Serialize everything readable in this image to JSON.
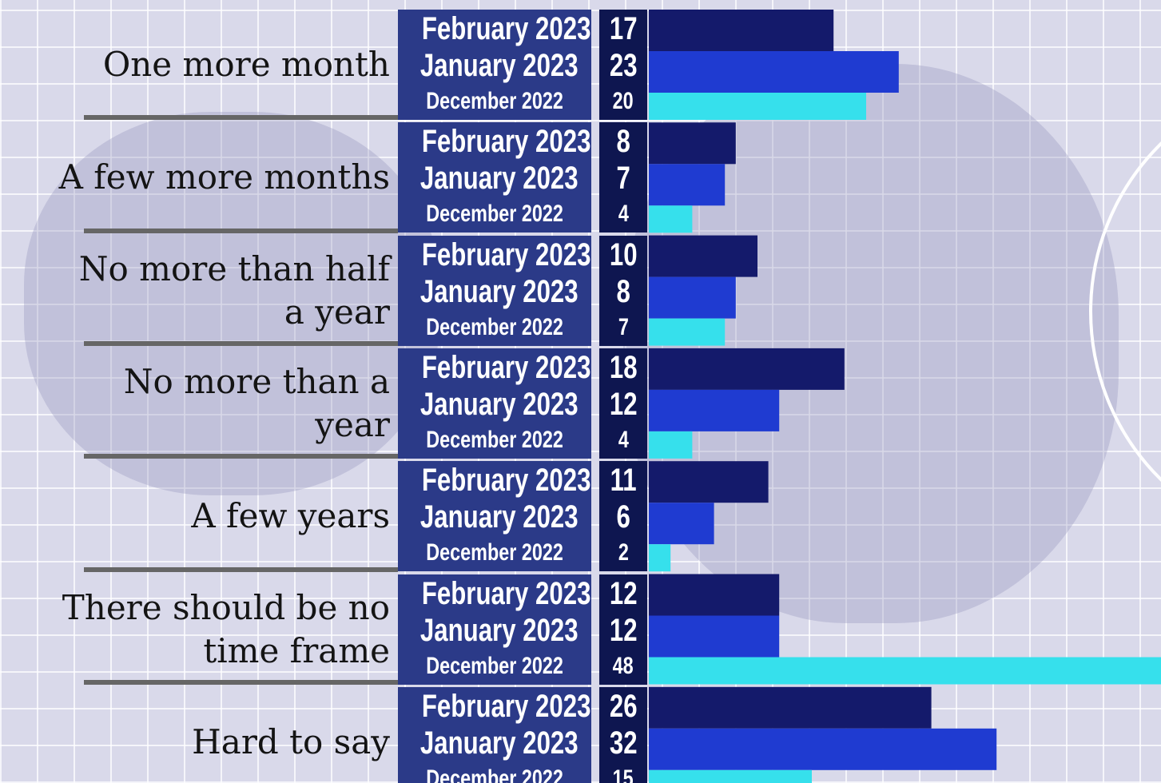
{
  "chart_data": {
    "type": "bar",
    "orientation": "horizontal",
    "categories": [
      "One more month",
      "A few more months",
      "No more than half a year",
      "No more than a year",
      "A few years",
      "There should be no time frame",
      "Hard to say"
    ],
    "series": [
      {
        "name": "February 2023",
        "color": "#141a6b",
        "values": [
          17,
          8,
          10,
          18,
          11,
          12,
          26
        ]
      },
      {
        "name": "January 2023",
        "color": "#1f3bd1",
        "values": [
          23,
          7,
          8,
          12,
          6,
          12,
          32
        ]
      },
      {
        "name": "December 2022",
        "color": "#36e0ec",
        "values": [
          20,
          4,
          7,
          4,
          2,
          48,
          15
        ]
      }
    ]
  }
}
